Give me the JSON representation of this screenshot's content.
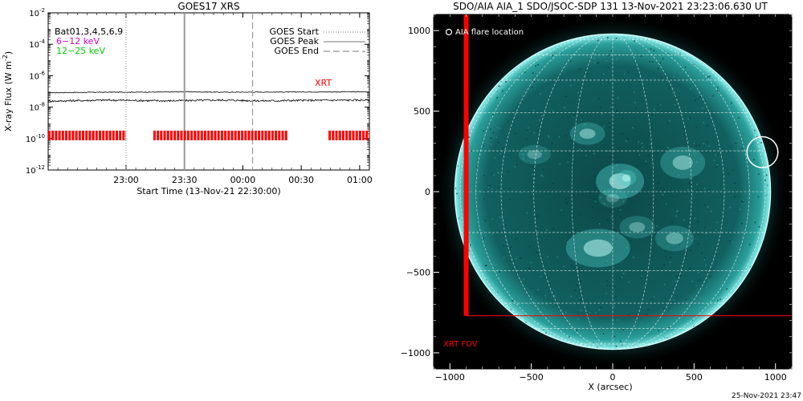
{
  "chart_data": [
    {
      "type": "line",
      "title": "GOES17 XRS",
      "xlabel": "Start Time (13-Nov-21 22:30:00)",
      "ylabel": "X-ray Flux (W m",
      "ylabel_sup": "-2",
      "ylabel_end": ")",
      "yscale": "log",
      "ylim_exp": [
        -12,
        -2
      ],
      "ytick_exps": [
        -12,
        -10,
        -8,
        -6,
        -4,
        -2
      ],
      "ytick_base": "10",
      "xlim_min": [
        -10,
        155
      ],
      "xticks": [
        {
          "label": "23:00",
          "min": 30
        },
        {
          "label": "23:30",
          "min": 60
        },
        {
          "label": "00:00",
          "min": 90
        },
        {
          "label": "00:30",
          "min": 120
        },
        {
          "label": "01:00",
          "min": 150
        }
      ],
      "legend_left": [
        {
          "label": "Bat01,3,4,5,6,9",
          "color": "#000000"
        },
        {
          "label": "6−12 keV",
          "color": "#cc00cc"
        },
        {
          "label": "12−25 keV",
          "color": "#00cc00"
        }
      ],
      "legend_right": [
        {
          "label": "GOES Start",
          "style": "dotted"
        },
        {
          "label": "GOES Peak",
          "style": "solid"
        },
        {
          "label": "GOES End",
          "style": "dashed"
        }
      ],
      "goes_start_min": 30,
      "goes_peak_min": 60,
      "goes_end_min": 95,
      "xrt_label": "XRT",
      "xrt_exp": -9.8,
      "xrt_intervals_min": [
        [
          -10,
          30
        ],
        [
          44,
          113
        ],
        [
          134,
          155
        ]
      ],
      "series": [
        {
          "x_min": [
            -10,
            20,
            50,
            60,
            80,
            100,
            130,
            155
          ],
          "log_flux": [
            -7.08,
            -7.05,
            -7.04,
            -7.02,
            -7.05,
            -7.04,
            -7.03,
            -7.02
          ],
          "color": "#000000"
        },
        {
          "x_min": [
            -10,
            20,
            50,
            60,
            80,
            100,
            130,
            155
          ],
          "log_flux": [
            -7.62,
            -7.55,
            -7.6,
            -7.58,
            -7.55,
            -7.6,
            -7.56,
            -7.55
          ],
          "color": "#000000"
        }
      ]
    },
    {
      "type": "scatter",
      "title": "SDO/AIA AIA_1 SDO/JSOC-SDP 131 13-Nov-2021 23:23:06.630 UT",
      "xlabel": "X (arcsec)",
      "xlim": [
        -1100,
        1100
      ],
      "ylim": [
        -1100,
        1100
      ],
      "xticks": [
        -1000,
        -500,
        0,
        500,
        1000
      ],
      "yticks": [
        -1000,
        -500,
        0,
        500,
        1000
      ],
      "xtick_labels": [
        "−1000",
        "−500",
        "0",
        "500",
        "1000"
      ],
      "ytick_labels": [
        "−1000",
        "−500",
        "0",
        "500",
        "1000"
      ],
      "solar_radius": 970,
      "flare_label": "AIA flare location",
      "flare_location": {
        "x": 920,
        "y": 245,
        "r": 95
      },
      "xrt_fov_label": "XRT FOV",
      "xrt_fov": {
        "x": [
          -900,
          1100
        ],
        "y": [
          -770,
          1100
        ]
      },
      "colors": {
        "disk": "#0f5a5a",
        "limb": "#8ff2ee",
        "fov": "#ff0000"
      }
    }
  ],
  "footer_timestamp": "25-Nov-2021 23:47"
}
